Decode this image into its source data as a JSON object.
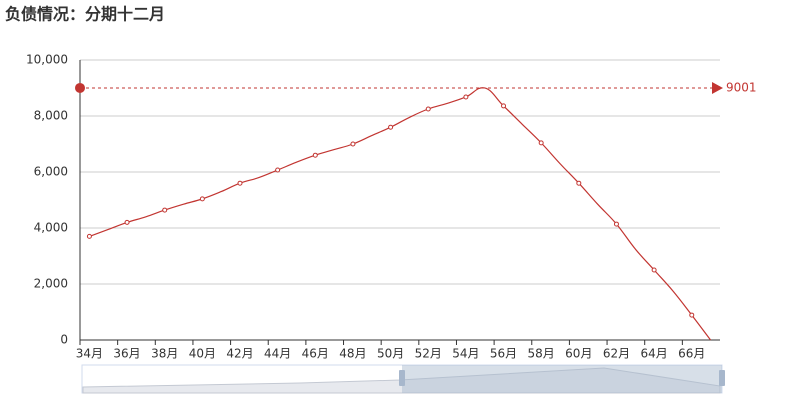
{
  "chart_data": {
    "type": "line",
    "title": "负债情况：分期十二月",
    "categories": [
      "34月",
      null,
      "36月",
      null,
      "38月",
      null,
      "40月",
      null,
      "42月",
      null,
      "44月",
      null,
      "46月",
      null,
      "48月",
      null,
      "50月",
      null,
      "52月",
      null,
      "54月",
      null,
      "56月",
      null,
      "58月",
      null,
      "60月",
      null,
      "62月",
      null,
      "64月",
      null,
      "66月",
      null
    ],
    "series": [
      {
        "color": "#c23531",
        "values": [
          3700,
          3950,
          4200,
          4400,
          4640,
          4850,
          5040,
          5300,
          5600,
          5800,
          6070,
          6350,
          6600,
          6800,
          7000,
          7300,
          7600,
          7950,
          8250,
          8450,
          8680,
          9001,
          8360,
          7700,
          7040,
          6300,
          5600,
          4850,
          4140,
          3250,
          2500,
          1750,
          890,
          0
        ]
      }
    ],
    "ylim": [
      0,
      10000
    ],
    "yticks": [
      0,
      {
        "value": 2000,
        "label": "2,000"
      },
      {
        "value": 4000,
        "label": "4,000"
      },
      {
        "value": 6000,
        "label": "6,000"
      },
      {
        "value": 8000,
        "label": "8,000"
      },
      {
        "value": 10000,
        "label": "10,000"
      }
    ],
    "grid": true,
    "mark_line": {
      "value": 9001
    }
  }
}
